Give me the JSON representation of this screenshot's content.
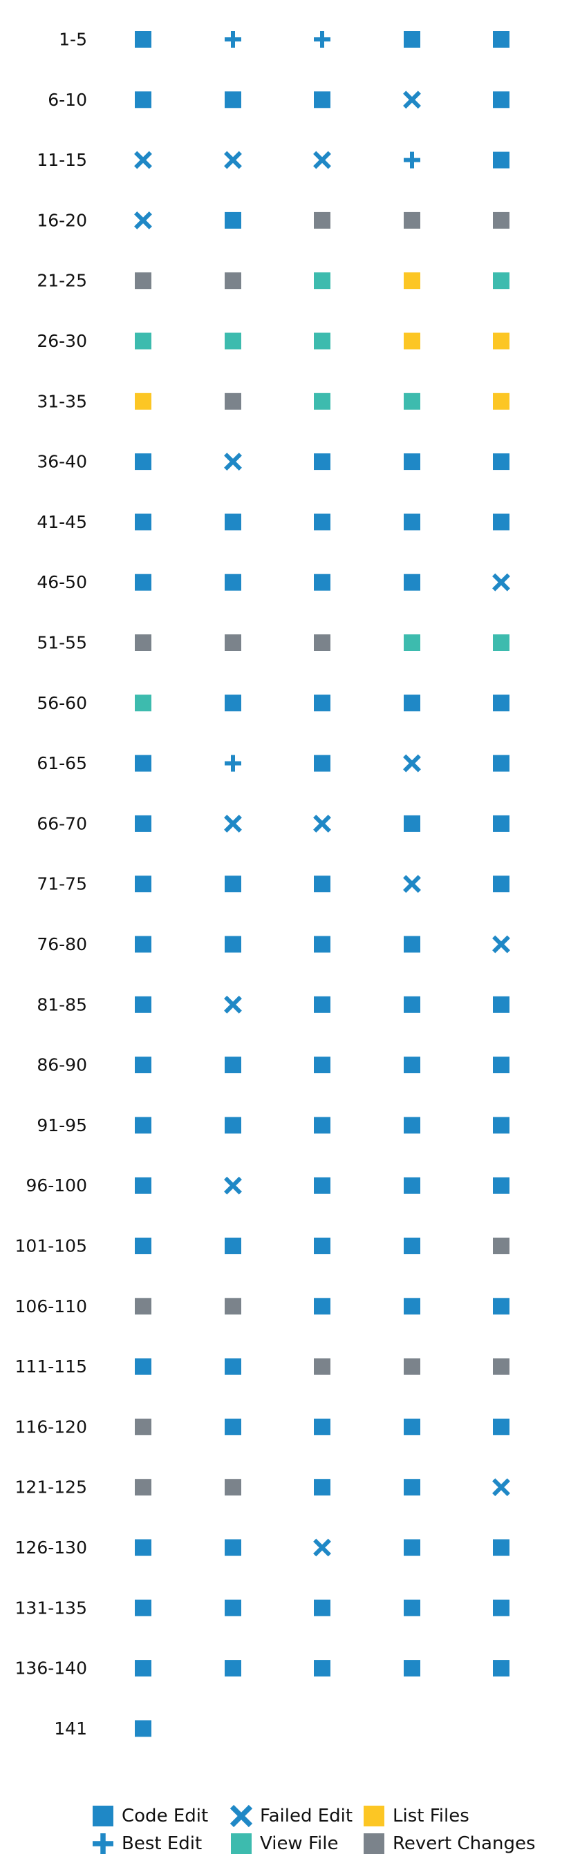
{
  "chart_data": {
    "type": "scatter",
    "title": "",
    "xlabel": "",
    "ylabel": "",
    "grid": false,
    "legend_position": "bottom",
    "columns_per_row": 5,
    "action_types": [
      {
        "key": "code",
        "label": "Code Edit",
        "marker": "square",
        "color": "#1f88c6"
      },
      {
        "key": "best",
        "label": "Best Edit",
        "marker": "plus",
        "color": "#1f88c6"
      },
      {
        "key": "failed",
        "label": "Failed Edit",
        "marker": "x",
        "color": "#1f88c6"
      },
      {
        "key": "view",
        "label": "View File",
        "marker": "square",
        "color": "#3dbbae"
      },
      {
        "key": "list",
        "label": "List Files",
        "marker": "square",
        "color": "#fcc624"
      },
      {
        "key": "revert",
        "label": "Revert Changes",
        "marker": "square",
        "color": "#7b838b"
      }
    ],
    "rows": [
      {
        "label": "1-5",
        "steps": [
          "code",
          "best",
          "best",
          "code",
          "code"
        ]
      },
      {
        "label": "6-10",
        "steps": [
          "code",
          "code",
          "code",
          "failed",
          "code"
        ]
      },
      {
        "label": "11-15",
        "steps": [
          "failed",
          "failed",
          "failed",
          "best",
          "code"
        ]
      },
      {
        "label": "16-20",
        "steps": [
          "failed",
          "code",
          "revert",
          "revert",
          "revert"
        ]
      },
      {
        "label": "21-25",
        "steps": [
          "revert",
          "revert",
          "view",
          "list",
          "view"
        ]
      },
      {
        "label": "26-30",
        "steps": [
          "view",
          "view",
          "view",
          "list",
          "list"
        ]
      },
      {
        "label": "31-35",
        "steps": [
          "list",
          "revert",
          "view",
          "view",
          "list"
        ]
      },
      {
        "label": "36-40",
        "steps": [
          "code",
          "failed",
          "code",
          "code",
          "code"
        ]
      },
      {
        "label": "41-45",
        "steps": [
          "code",
          "code",
          "code",
          "code",
          "code"
        ]
      },
      {
        "label": "46-50",
        "steps": [
          "code",
          "code",
          "code",
          "code",
          "failed"
        ]
      },
      {
        "label": "51-55",
        "steps": [
          "revert",
          "revert",
          "revert",
          "view",
          "view"
        ]
      },
      {
        "label": "56-60",
        "steps": [
          "view",
          "code",
          "code",
          "code",
          "code"
        ]
      },
      {
        "label": "61-65",
        "steps": [
          "code",
          "best",
          "code",
          "failed",
          "code"
        ]
      },
      {
        "label": "66-70",
        "steps": [
          "code",
          "failed",
          "failed",
          "code",
          "code"
        ]
      },
      {
        "label": "71-75",
        "steps": [
          "code",
          "code",
          "code",
          "failed",
          "code"
        ]
      },
      {
        "label": "76-80",
        "steps": [
          "code",
          "code",
          "code",
          "code",
          "failed"
        ]
      },
      {
        "label": "81-85",
        "steps": [
          "code",
          "failed",
          "code",
          "code",
          "code"
        ]
      },
      {
        "label": "86-90",
        "steps": [
          "code",
          "code",
          "code",
          "code",
          "code"
        ]
      },
      {
        "label": "91-95",
        "steps": [
          "code",
          "code",
          "code",
          "code",
          "code"
        ]
      },
      {
        "label": "96-100",
        "steps": [
          "code",
          "failed",
          "code",
          "code",
          "code"
        ]
      },
      {
        "label": "101-105",
        "steps": [
          "code",
          "code",
          "code",
          "code",
          "revert"
        ]
      },
      {
        "label": "106-110",
        "steps": [
          "revert",
          "revert",
          "code",
          "code",
          "code"
        ]
      },
      {
        "label": "111-115",
        "steps": [
          "code",
          "code",
          "revert",
          "revert",
          "revert"
        ]
      },
      {
        "label": "116-120",
        "steps": [
          "revert",
          "code",
          "code",
          "code",
          "code"
        ]
      },
      {
        "label": "121-125",
        "steps": [
          "revert",
          "revert",
          "code",
          "code",
          "failed"
        ]
      },
      {
        "label": "126-130",
        "steps": [
          "code",
          "code",
          "failed",
          "code",
          "code"
        ]
      },
      {
        "label": "131-135",
        "steps": [
          "code",
          "code",
          "code",
          "code",
          "code"
        ]
      },
      {
        "label": "136-140",
        "steps": [
          "code",
          "code",
          "code",
          "code",
          "code"
        ]
      },
      {
        "label": "141",
        "steps": [
          "code"
        ]
      }
    ]
  }
}
